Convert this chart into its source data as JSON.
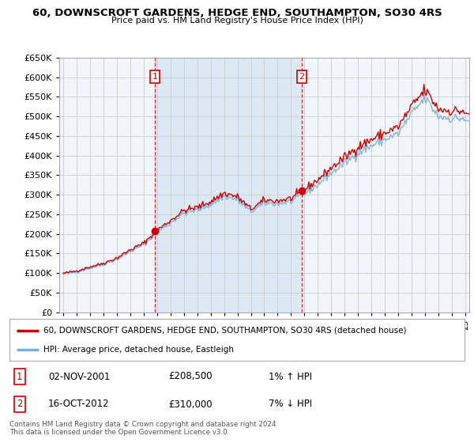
{
  "title": "60, DOWNSCROFT GARDENS, HEDGE END, SOUTHAMPTON, SO30 4RS",
  "subtitle": "Price paid vs. HM Land Registry's House Price Index (HPI)",
  "legend_line1": "60, DOWNSCROFT GARDENS, HEDGE END, SOUTHAMPTON, SO30 4RS (detached house)",
  "legend_line2": "HPI: Average price, detached house, Eastleigh",
  "annotation1_label": "1",
  "annotation1_date": "02-NOV-2001",
  "annotation1_price": "£208,500",
  "annotation1_hpi": "1% ↑ HPI",
  "annotation2_label": "2",
  "annotation2_date": "16-OCT-2012",
  "annotation2_price": "£310,000",
  "annotation2_hpi": "7% ↓ HPI",
  "footer": "Contains HM Land Registry data © Crown copyright and database right 2024.\nThis data is licensed under the Open Government Licence v3.0.",
  "sale1_year": 2001.833,
  "sale1_price": 208500,
  "sale2_year": 2012.792,
  "sale2_price": 310000,
  "red_color": "#cc0000",
  "blue_color": "#7aaed6",
  "grid_color": "#cccccc",
  "background_color": "#ffffff",
  "plot_bg_color": "#dce9f5",
  "shade_color": "#dce9f5",
  "ylim_min": 0,
  "ylim_max": 650000,
  "ytick_step": 50000
}
